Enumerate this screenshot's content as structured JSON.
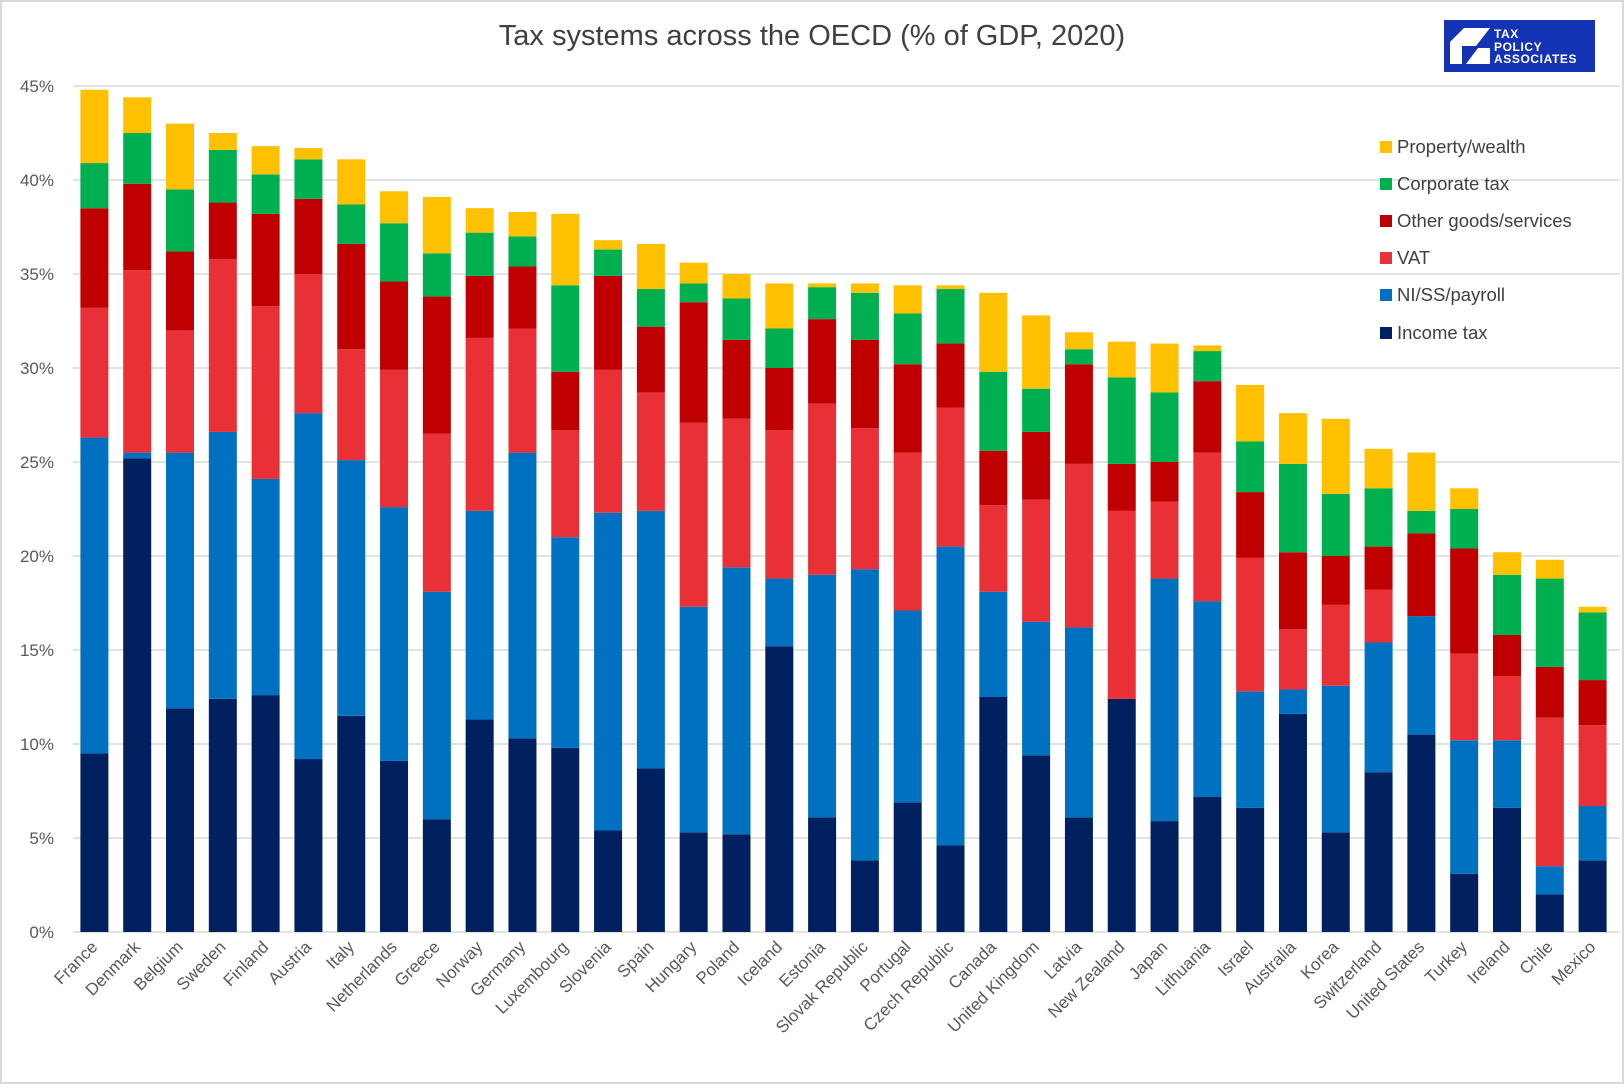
{
  "chart_data": {
    "type": "bar",
    "stacked": true,
    "title": "Tax systems across the OECD (% of GDP, 2020)",
    "xlabel": "",
    "ylabel": "",
    "ylim": [
      0,
      45
    ],
    "yticks": [
      "0%",
      "5%",
      "10%",
      "15%",
      "20%",
      "25%",
      "30%",
      "35%",
      "40%",
      "45%"
    ],
    "grid": true,
    "legend_position": "right",
    "categories": [
      "France",
      "Denmark",
      "Belgium",
      "Sweden",
      "Finland",
      "Austria",
      "Italy",
      "Netherlands",
      "Greece",
      "Norway",
      "Germany",
      "Luxembourg",
      "Slovenia",
      "Spain",
      "Hungary",
      "Poland",
      "Iceland",
      "Estonia",
      "Slovak Republic",
      "Portugal",
      "Czech Republic",
      "Canada",
      "United Kingdom",
      "Latvia",
      "New Zealand",
      "Japan",
      "Lithuania",
      "Israel",
      "Australia",
      "Korea",
      "Switzerland",
      "United States",
      "Turkey",
      "Ireland",
      "Chile",
      "Mexico"
    ],
    "series": [
      {
        "name": "Income tax",
        "color": "#002060",
        "values": [
          9.5,
          25.2,
          11.9,
          12.4,
          12.6,
          9.2,
          11.5,
          9.1,
          6.0,
          11.3,
          10.3,
          9.8,
          5.4,
          8.7,
          5.3,
          5.2,
          15.2,
          6.1,
          3.8,
          6.9,
          4.6,
          12.5,
          9.4,
          6.1,
          12.4,
          5.9,
          7.2,
          6.6,
          11.6,
          5.3,
          8.5,
          10.5,
          3.1,
          6.6,
          2.0,
          3.8
        ]
      },
      {
        "name": "NI/SS/payroll",
        "color": "#0070c0",
        "values": [
          16.8,
          0.3,
          13.6,
          14.2,
          11.5,
          18.4,
          13.6,
          13.5,
          12.1,
          11.1,
          15.2,
          11.2,
          16.9,
          13.7,
          12.0,
          14.2,
          3.6,
          12.9,
          15.5,
          10.2,
          15.9,
          5.6,
          7.1,
          10.1,
          0,
          12.9,
          10.4,
          6.2,
          1.3,
          7.8,
          6.9,
          6.3,
          7.1,
          3.6,
          1.5,
          2.9
        ]
      },
      {
        "name": "VAT",
        "color": "#e83036",
        "values": [
          6.9,
          9.7,
          6.5,
          9.2,
          9.2,
          7.4,
          5.9,
          7.3,
          8.4,
          9.2,
          6.6,
          5.7,
          7.6,
          6.3,
          9.8,
          7.9,
          7.9,
          9.1,
          7.5,
          8.4,
          7.4,
          4.6,
          6.5,
          8.7,
          10.0,
          4.1,
          7.9,
          7.1,
          3.2,
          4.3,
          2.8,
          0,
          4.6,
          3.4,
          7.9,
          4.3
        ]
      },
      {
        "name": "Other goods/services",
        "color": "#c00000",
        "values": [
          5.3,
          4.6,
          4.2,
          3.0,
          4.9,
          4.0,
          5.6,
          4.7,
          7.3,
          3.3,
          3.3,
          3.1,
          5.0,
          3.5,
          6.4,
          4.2,
          3.3,
          4.5,
          4.7,
          4.7,
          3.4,
          2.9,
          3.6,
          5.3,
          2.5,
          2.1,
          3.8,
          3.5,
          4.1,
          2.6,
          2.3,
          4.4,
          5.6,
          2.2,
          2.7,
          2.4
        ]
      },
      {
        "name": "Corporate tax",
        "color": "#00b050",
        "values": [
          2.4,
          2.7,
          3.3,
          2.8,
          2.1,
          2.1,
          2.1,
          3.1,
          2.3,
          2.3,
          1.6,
          4.6,
          1.4,
          2.0,
          1.0,
          2.2,
          2.1,
          1.7,
          2.5,
          2.7,
          2.9,
          4.2,
          2.3,
          0.8,
          4.6,
          3.7,
          1.6,
          2.7,
          4.7,
          3.3,
          3.1,
          1.2,
          2.1,
          3.2,
          4.7,
          3.6
        ]
      },
      {
        "name": "Property/wealth",
        "color": "#ffc000",
        "values": [
          3.9,
          1.9,
          3.5,
          0.9,
          1.5,
          0.6,
          2.4,
          1.7,
          3.0,
          1.3,
          1.3,
          3.8,
          0.5,
          2.4,
          1.1,
          1.3,
          2.4,
          0.2,
          0.5,
          1.5,
          0.2,
          4.2,
          3.9,
          0.9,
          1.9,
          2.6,
          0.3,
          3.0,
          2.7,
          4.0,
          2.1,
          3.1,
          1.1,
          1.2,
          1.0,
          0.3
        ]
      }
    ],
    "legend_order": [
      "Property/wealth",
      "Corporate tax",
      "Other goods/services",
      "VAT",
      "NI/SS/payroll",
      "Income tax"
    ]
  },
  "logo": {
    "text_lines": [
      "TAX",
      "POLICY",
      "ASSOCIATES"
    ],
    "color": "#1432b4"
  }
}
